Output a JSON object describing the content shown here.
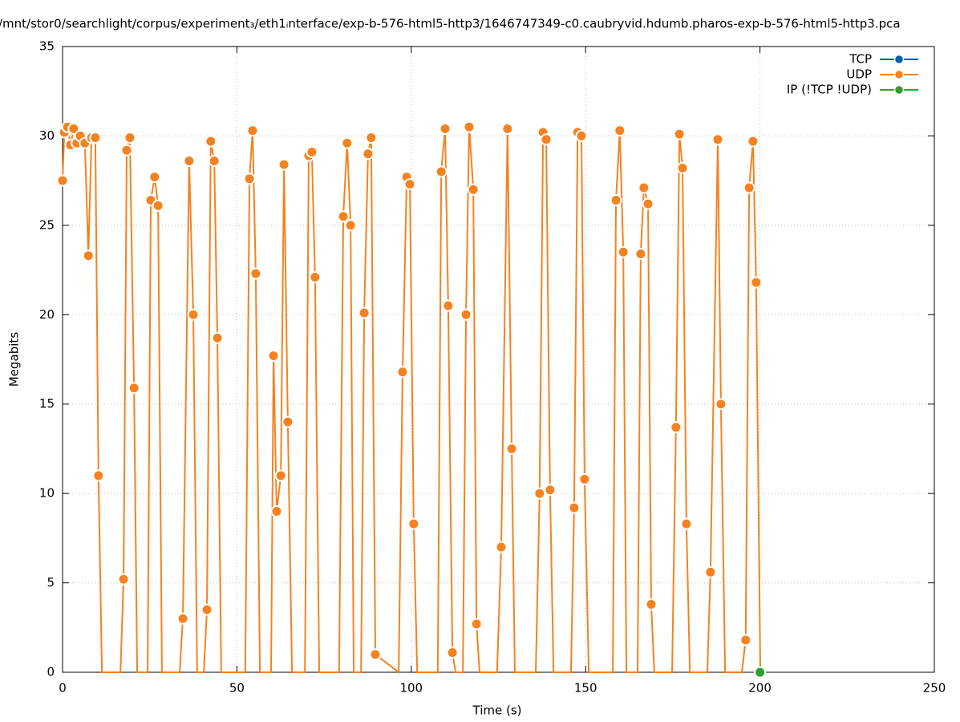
{
  "chart_data": {
    "type": "line",
    "title": "/mnt/stor0/searchlight/corpus/experiment₃/eth1ᵢnterface/exp-b-576-html5-http3/1646747349-c0.caubryvid.hdumb.pharos-exp-b-576-html5-http3.pca",
    "xlabel": "Time (s)",
    "ylabel": "Megabits",
    "xlim": [
      0,
      250
    ],
    "ylim": [
      0,
      35
    ],
    "xticks": [
      0,
      50,
      100,
      150,
      200,
      250
    ],
    "yticks": [
      0,
      5,
      10,
      15,
      20,
      25,
      30,
      35
    ],
    "grid": true,
    "legend": "top-right",
    "series": [
      {
        "name": "TCP",
        "color": "#0060ad",
        "x": [],
        "values": []
      },
      {
        "name": "UDP",
        "color": "#f58220",
        "x": [
          0,
          0.5,
          1.4,
          2.3,
          3.2,
          4.1,
          5.1,
          6.4,
          7.4,
          8.3,
          9.4,
          10.3,
          11.3,
          16.6,
          17.5,
          18.4,
          19.3,
          20.5,
          21.4,
          24.4,
          25.3,
          26.4,
          27.4,
          28.5,
          33.6,
          34.5,
          36.3,
          37.5,
          38.6,
          40.5,
          41.4,
          42.5,
          43.5,
          44.4,
          45.5,
          52.4,
          53.6,
          54.5,
          55.4,
          56.6,
          59.8,
          60.5,
          61.4,
          62.6,
          63.5,
          64.6,
          65.8,
          69.5,
          70.6,
          71.5,
          72.4,
          73.6,
          79.3,
          80.5,
          81.6,
          82.6,
          83.5,
          85.6,
          86.5,
          87.6,
          88.5,
          89.7,
          96.4,
          97.5,
          98.7,
          99.6,
          100.7,
          101.7,
          107.6,
          108.6,
          109.7,
          110.6,
          111.8,
          112.7,
          114.8,
          115.7,
          116.6,
          117.8,
          118.7,
          119.6,
          124.6,
          125.8,
          127.6,
          128.8,
          129.7,
          135.7,
          136.8,
          137.8,
          138.7,
          139.8,
          140.8,
          145.8,
          146.7,
          147.7,
          148.8,
          149.7,
          150.9,
          157.8,
          158.7,
          159.8,
          160.8,
          161.7,
          164.9,
          165.8,
          166.7,
          167.9,
          168.8,
          169.7,
          174.8,
          175.9,
          176.9,
          177.8,
          178.9,
          179.9,
          184.9,
          185.8,
          187.9,
          188.8,
          190.0,
          194.8,
          195.9,
          196.9,
          198.0,
          198.9,
          200.1
        ],
        "values": [
          27.5,
          30.2,
          30.5,
          29.5,
          30.4,
          29.6,
          30.0,
          29.6,
          23.3,
          29.9,
          29.9,
          11.0,
          0,
          0,
          5.2,
          29.2,
          29.9,
          15.9,
          0,
          0,
          26.4,
          27.7,
          26.1,
          0,
          0,
          3.0,
          28.6,
          20.0,
          0,
          0,
          3.5,
          29.7,
          28.6,
          18.7,
          0,
          0,
          27.6,
          30.3,
          22.3,
          0,
          0,
          17.7,
          9.0,
          11.0,
          28.4,
          14.0,
          0,
          0,
          28.9,
          29.1,
          22.1,
          0,
          0,
          25.5,
          29.6,
          25.0,
          0,
          0,
          20.1,
          29.0,
          29.9,
          1.0,
          0,
          16.8,
          27.7,
          27.3,
          8.3,
          0,
          0,
          28.0,
          30.4,
          20.5,
          1.1,
          0,
          0,
          20.0,
          30.5,
          27.0,
          2.7,
          0,
          0,
          7.0,
          30.4,
          12.5,
          0,
          0,
          10.0,
          30.2,
          29.8,
          10.2,
          0,
          0,
          9.2,
          30.2,
          30.0,
          10.8,
          0,
          0,
          26.4,
          30.3,
          23.5,
          0,
          0,
          23.4,
          27.1,
          26.2,
          3.8,
          0,
          0,
          13.7,
          30.1,
          28.2,
          8.3,
          0,
          0,
          5.6,
          29.8,
          15.0,
          0,
          0,
          1.8,
          27.1,
          29.7,
          21.8,
          0
        ]
      },
      {
        "name": "IP (!TCP  !UDP)",
        "color": "#2ca02c",
        "x": [
          200
        ],
        "values": [
          0
        ]
      }
    ]
  }
}
